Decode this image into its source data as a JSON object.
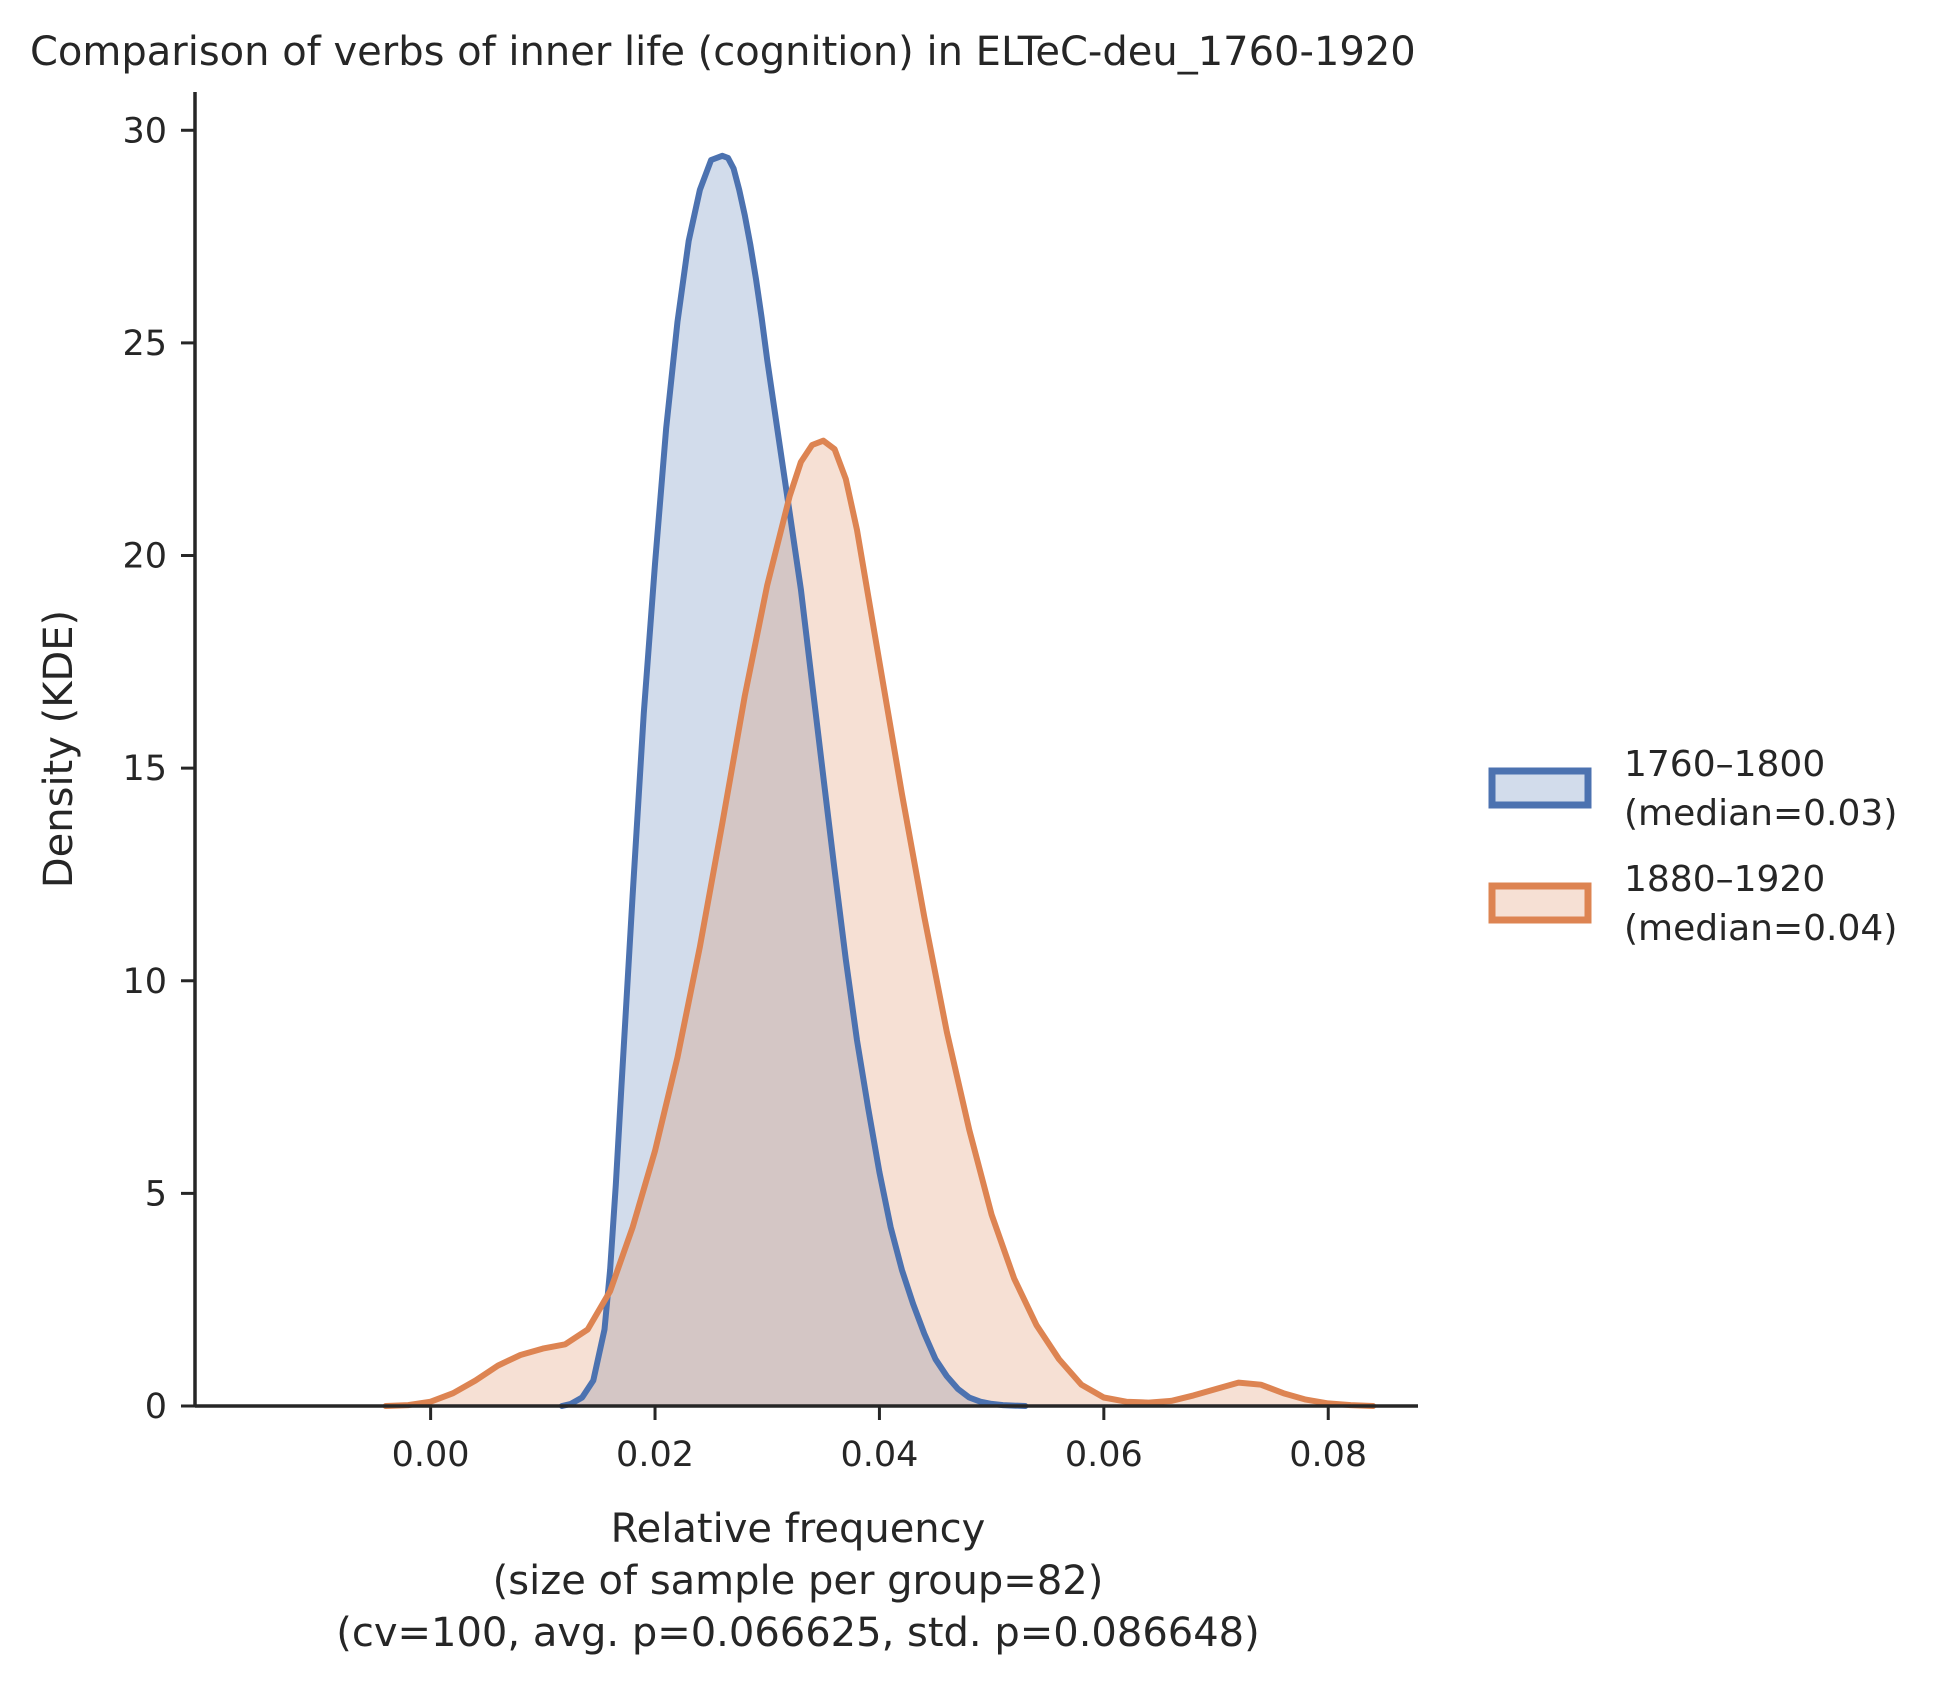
{
  "chart_data": {
    "type": "area",
    "title": "Comparison of verbs of inner life (cognition) in ELTeC-deu_1760-1920",
    "xlabel_lines": [
      "Relative frequency",
      "(size of sample per group=82)",
      "(cv=100, avg. p=0.066625, std. p=0.086648)"
    ],
    "ylabel": "Density (KDE)",
    "xlim": [
      -0.021,
      0.088
    ],
    "ylim": [
      0,
      30.9
    ],
    "x_ticks": [
      0.0,
      0.02,
      0.04,
      0.06,
      0.08
    ],
    "x_tick_labels": [
      "0.00",
      "0.02",
      "0.04",
      "0.06",
      "0.08"
    ],
    "y_ticks": [
      0,
      5,
      10,
      15,
      20,
      25,
      30
    ],
    "y_tick_labels": [
      "0",
      "5",
      "10",
      "15",
      "20",
      "25",
      "30"
    ],
    "grid": false,
    "legend_position": "right",
    "series": [
      {
        "name": "1760–1800",
        "legend_note": "(median=0.03)",
        "color": "#4c72b0",
        "fill": "#4c72b0",
        "x": [
          0.0117,
          0.0125,
          0.0135,
          0.0145,
          0.0155,
          0.016,
          0.0165,
          0.017,
          0.018,
          0.019,
          0.02,
          0.021,
          0.022,
          0.023,
          0.024,
          0.025,
          0.026,
          0.0265,
          0.027,
          0.0275,
          0.028,
          0.0285,
          0.029,
          0.0295,
          0.03,
          0.031,
          0.032,
          0.033,
          0.034,
          0.035,
          0.036,
          0.037,
          0.038,
          0.039,
          0.04,
          0.041,
          0.042,
          0.043,
          0.044,
          0.045,
          0.046,
          0.047,
          0.048,
          0.049,
          0.05,
          0.051,
          0.052,
          0.053
        ],
        "y": [
          0.0,
          0.05,
          0.2,
          0.6,
          1.8,
          3.2,
          5.2,
          7.5,
          12.0,
          16.3,
          19.8,
          23.0,
          25.5,
          27.4,
          28.6,
          29.3,
          29.4,
          29.35,
          29.1,
          28.6,
          28.0,
          27.3,
          26.5,
          25.6,
          24.6,
          22.8,
          21.0,
          19.2,
          17.0,
          14.8,
          12.6,
          10.5,
          8.6,
          7.0,
          5.5,
          4.2,
          3.2,
          2.4,
          1.7,
          1.1,
          0.7,
          0.4,
          0.2,
          0.1,
          0.05,
          0.02,
          0.01,
          0.0
        ]
      },
      {
        "name": "1880–1920",
        "legend_note": "(median=0.04)",
        "color": "#dd8452",
        "fill": "#dd8452",
        "x": [
          -0.004,
          -0.002,
          0.0,
          0.002,
          0.004,
          0.006,
          0.008,
          0.01,
          0.012,
          0.014,
          0.016,
          0.018,
          0.02,
          0.022,
          0.024,
          0.026,
          0.028,
          0.03,
          0.032,
          0.033,
          0.034,
          0.035,
          0.036,
          0.037,
          0.038,
          0.04,
          0.042,
          0.044,
          0.046,
          0.048,
          0.05,
          0.052,
          0.054,
          0.056,
          0.058,
          0.06,
          0.062,
          0.064,
          0.066,
          0.068,
          0.07,
          0.072,
          0.074,
          0.076,
          0.078,
          0.08,
          0.082,
          0.084
        ],
        "y": [
          0.0,
          0.02,
          0.1,
          0.3,
          0.6,
          0.95,
          1.2,
          1.35,
          1.45,
          1.8,
          2.7,
          4.2,
          6.0,
          8.2,
          10.8,
          13.7,
          16.7,
          19.3,
          21.4,
          22.2,
          22.6,
          22.7,
          22.5,
          21.8,
          20.6,
          17.5,
          14.4,
          11.5,
          8.8,
          6.5,
          4.5,
          3.0,
          1.9,
          1.1,
          0.5,
          0.2,
          0.1,
          0.08,
          0.12,
          0.25,
          0.4,
          0.55,
          0.5,
          0.3,
          0.15,
          0.06,
          0.02,
          0.0
        ]
      }
    ]
  }
}
